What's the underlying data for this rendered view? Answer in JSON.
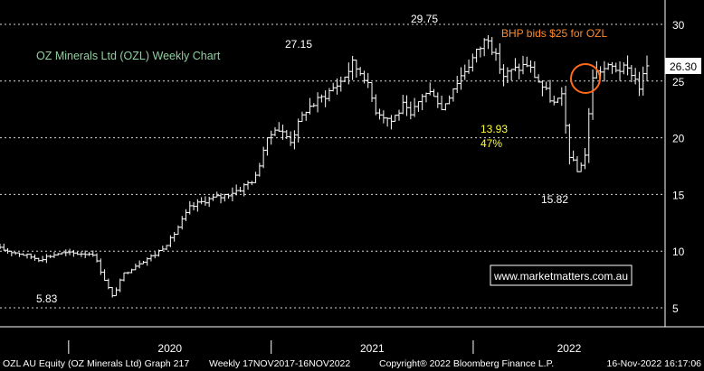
{
  "chart_data": {
    "type": "ohlc",
    "title": "OZ Minerals Ltd (OZL) Weekly Chart",
    "ylim": [
      3,
      33
    ],
    "yticks": [
      5,
      10,
      15,
      20,
      25,
      30
    ],
    "xlabels": [
      {
        "text": "2020",
        "date": "2020-01-01"
      },
      {
        "text": "2021",
        "date": "2021-01-01"
      },
      {
        "text": "2022",
        "date": "2022-01-01"
      }
    ],
    "period": "Weekly 17NOV2017-16NOV2022",
    "last_price": "26.30",
    "annotations": [
      {
        "id": "low-2020",
        "text": "5.83"
      },
      {
        "id": "high-2021a",
        "text": "27.15"
      },
      {
        "id": "high-2021b",
        "text": "29.75"
      },
      {
        "id": "bhp-bid",
        "text": "BHP bids $25 for OZL"
      },
      {
        "id": "rally-abs",
        "text": "13.93"
      },
      {
        "id": "rally-pct",
        "text": "47%"
      },
      {
        "id": "low-2022",
        "text": "15.82"
      }
    ],
    "website": "www.marketmatters.com.au",
    "anchors": [
      [
        "2019-08-30",
        10.2
      ],
      [
        "2019-10-04",
        9.8
      ],
      [
        "2019-11-08",
        9.3
      ],
      [
        "2019-12-13",
        9.8
      ],
      [
        "2020-01-17",
        9.8
      ],
      [
        "2020-02-14",
        9.8
      ],
      [
        "2020-03-06",
        7.5
      ],
      [
        "2020-03-20",
        6.0
      ],
      [
        "2020-04-10",
        8.0
      ],
      [
        "2020-05-08",
        9.0
      ],
      [
        "2020-06-05",
        9.7
      ],
      [
        "2020-07-03",
        11.0
      ],
      [
        "2020-08-07",
        13.8
      ],
      [
        "2020-09-04",
        14.5
      ],
      [
        "2020-10-02",
        14.8
      ],
      [
        "2020-11-06",
        15.5
      ],
      [
        "2020-12-04",
        16.5
      ],
      [
        "2020-12-18",
        19.0
      ],
      [
        "2021-01-08",
        21.0
      ],
      [
        "2021-02-05",
        19.8
      ],
      [
        "2021-03-05",
        22.5
      ],
      [
        "2021-04-02",
        23.5
      ],
      [
        "2021-05-07",
        25.0
      ],
      [
        "2021-05-28",
        26.5
      ],
      [
        "2021-06-18",
        25.5
      ],
      [
        "2021-07-09",
        22.5
      ],
      [
        "2021-08-06",
        21.5
      ],
      [
        "2021-08-27",
        22.8
      ],
      [
        "2021-09-10",
        21.8
      ],
      [
        "2021-10-01",
        23.8
      ],
      [
        "2021-10-22",
        24.0
      ],
      [
        "2021-11-05",
        22.5
      ],
      [
        "2021-11-26",
        24.5
      ],
      [
        "2021-12-10",
        25.5
      ],
      [
        "2022-01-07",
        27.5
      ],
      [
        "2022-01-28",
        29.0
      ],
      [
        "2022-02-11",
        27.0
      ],
      [
        "2022-02-25",
        25.5
      ],
      [
        "2022-03-18",
        26.0
      ],
      [
        "2022-04-08",
        26.5
      ],
      [
        "2022-04-29",
        25.0
      ],
      [
        "2022-05-13",
        24.0
      ],
      [
        "2022-05-27",
        23.0
      ],
      [
        "2022-06-10",
        23.5
      ],
      [
        "2022-06-24",
        18.5
      ],
      [
        "2022-07-08",
        17.0
      ],
      [
        "2022-07-22",
        18.5
      ],
      [
        "2022-08-05",
        25.5
      ],
      [
        "2022-08-19",
        26.0
      ],
      [
        "2022-09-09",
        26.2
      ],
      [
        "2022-09-30",
        26.0
      ],
      [
        "2022-10-14",
        25.8
      ],
      [
        "2022-10-28",
        24.5
      ],
      [
        "2022-11-11",
        26.3
      ]
    ]
  },
  "footer": {
    "security": "OZL AU Equity (OZ Minerals Ltd) Graph 217",
    "range": "Weekly 17NOV2017-16NOV2022",
    "copyright": "Copyright® 2022 Bloomberg Finance L.P.",
    "timestamp": "16-Nov-2022 16:17:06"
  },
  "colors": {
    "background": "#000000",
    "grid": "#d8d8d8",
    "bars": "#ffffff",
    "title": "#8fd0a0",
    "annotation": "#ffffff",
    "bid": "#ff8a2a",
    "circle": "#ff6a1a",
    "rally": "#ffff33",
    "website": "#ffffff",
    "website_border": "#ffffff"
  }
}
